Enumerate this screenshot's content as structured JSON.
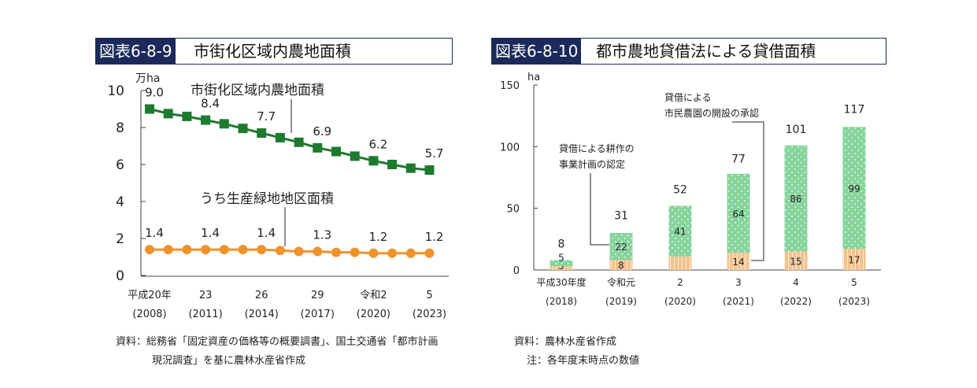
{
  "fig1": {
    "number": "図表6-8-9",
    "title": "市街化区域内農地面積",
    "source_line1": "資料：総務省「固定資産の価格等の概要調書」、国土交通省「都市計画",
    "source_line2": "現況調査」を基に農林水産省作成"
  },
  "fig2": {
    "number": "図表6-8-10",
    "title": "都市農地貸借法による貸借面積",
    "source_line1": "資料：農林水産省作成",
    "source_line2": "注：各年度末時点の数値"
  },
  "chart_data": [
    {
      "type": "line",
      "yunit": "万ha",
      "ylim": [
        0,
        10
      ],
      "yticks": [
        "0",
        "2",
        "4",
        "6",
        "8",
        "10"
      ],
      "x": [
        2008,
        2009,
        2010,
        2011,
        2012,
        2013,
        2014,
        2015,
        2016,
        2017,
        2018,
        2019,
        2020,
        2021,
        2022,
        2023
      ],
      "xtick_labels": [
        {
          "x": 2008,
          "line1": "平成20年",
          "line2": "(2008)"
        },
        {
          "x": 2011,
          "line1": "23",
          "line2": "(2011)"
        },
        {
          "x": 2014,
          "line1": "26",
          "line2": "(2014)"
        },
        {
          "x": 2017,
          "line1": "29",
          "line2": "(2017)"
        },
        {
          "x": 2020,
          "line1": "令和2",
          "line2": "(2020)"
        },
        {
          "x": 2023,
          "line1": "5",
          "line2": "(2023)"
        }
      ],
      "series": [
        {
          "name": "市街化区域内農地面積",
          "color": "#1e7a2e",
          "marker": "square",
          "values": [
            9.0,
            8.75,
            8.6,
            8.4,
            8.2,
            7.95,
            7.7,
            7.45,
            7.2,
            6.9,
            6.7,
            6.45,
            6.2,
            6.0,
            5.8,
            5.7
          ],
          "value_labels": [
            {
              "x": 2008,
              "text": "9.0"
            },
            {
              "x": 2011,
              "text": "8.4"
            },
            {
              "x": 2014,
              "text": "7.7"
            },
            {
              "x": 2017,
              "text": "6.9"
            },
            {
              "x": 2020,
              "text": "6.2"
            },
            {
              "x": 2023,
              "text": "5.7"
            }
          ]
        },
        {
          "name": "うち生産緑地地区面積",
          "color": "#f0922b",
          "marker": "circle",
          "values": [
            1.4,
            1.4,
            1.4,
            1.4,
            1.4,
            1.4,
            1.4,
            1.35,
            1.3,
            1.3,
            1.25,
            1.25,
            1.2,
            1.2,
            1.2,
            1.2
          ],
          "value_labels": [
            {
              "x": 2008,
              "text": "1.4"
            },
            {
              "x": 2011,
              "text": "1.4"
            },
            {
              "x": 2014,
              "text": "1.4"
            },
            {
              "x": 2017,
              "text": "1.3"
            },
            {
              "x": 2020,
              "text": "1.2"
            },
            {
              "x": 2023,
              "text": "1.2"
            }
          ]
        }
      ]
    },
    {
      "type": "bar",
      "stacked": true,
      "yunit": "ha",
      "ylim": [
        0,
        150
      ],
      "yticks": [
        "0",
        "50",
        "100",
        "150"
      ],
      "categories": [
        {
          "line1": "平成30年度",
          "line2": "(2018)"
        },
        {
          "line1": "令和元",
          "line2": "(2019)"
        },
        {
          "line1": "2",
          "line2": "(2020)"
        },
        {
          "line1": "3",
          "line2": "(2021)"
        },
        {
          "line1": "4",
          "line2": "(2022)"
        },
        {
          "line1": "5",
          "line2": "(2023)"
        }
      ],
      "series": [
        {
          "name": "市民農園の開設の承認",
          "color": "#f5c28c",
          "values": [
            3,
            8,
            11,
            14,
            15,
            17
          ],
          "labels": [
            "3",
            "8",
            "",
            "14",
            "15",
            "17"
          ]
        },
        {
          "name": "貸借による耕作の事業計画の認定",
          "color": "#86d49c",
          "values": [
            5,
            22,
            41,
            64,
            86,
            99
          ],
          "labels": [
            "5",
            "22",
            "41",
            "64",
            "86",
            "99"
          ]
        }
      ],
      "totals": [
        8,
        31,
        52,
        77,
        101,
        117
      ],
      "total_labels": [
        "8",
        "31",
        "52",
        "77",
        "101",
        "117"
      ],
      "annotations": [
        {
          "text_line1": "貸借による",
          "text_line2": "市民農園の開設の承認"
        },
        {
          "text_line1": "貸借による耕作の",
          "text_line2": "事業計画の認定"
        }
      ]
    }
  ]
}
